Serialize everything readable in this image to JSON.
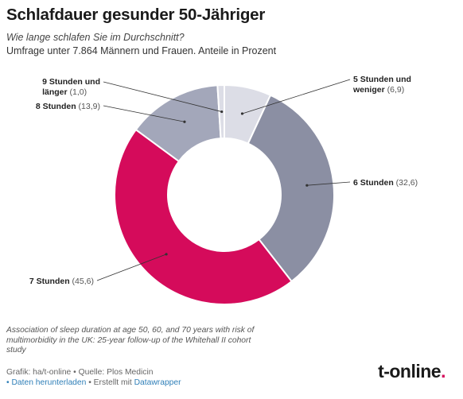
{
  "header": {
    "title": "Schlafdauer gesunder 50-Jähriger",
    "subtitle": "Wie lange schlafen Sie im Durchschnitt?",
    "description": "Umfrage unter 7.864 Männern und Frauen. Anteile in Prozent"
  },
  "chart_data": {
    "type": "pie",
    "donut": true,
    "title": "Schlafdauer gesunder 50-Jähriger",
    "categories": [
      "5 Stunden und weniger",
      "6 Stunden",
      "7 Stunden",
      "8 Stunden",
      "9 Stunden und länger"
    ],
    "values": [
      6.9,
      32.6,
      45.6,
      13.9,
      1.0
    ],
    "colors": [
      "#dcdde6",
      "#8b8fa3",
      "#d50b5b",
      "#a3a7ba",
      "#dcdde6"
    ],
    "labels": [
      {
        "lines": [
          "5 Stunden und",
          "weniger"
        ],
        "value_text": "(6,9)"
      },
      {
        "lines": [
          "6 Stunden"
        ],
        "value_text": "(32,6)"
      },
      {
        "lines": [
          "7 Stunden"
        ],
        "value_text": "(45,6)"
      },
      {
        "lines": [
          "8 Stunden"
        ],
        "value_text": "(13,9)"
      },
      {
        "lines": [
          "9 Stunden und",
          "länger"
        ],
        "value_text": "(1,0)"
      }
    ],
    "legend": "none"
  },
  "footer": {
    "note": "Association of sleep duration at age 50, 60, and 70 years with risk of multimorbidity in the UK: 25-year follow-up of the Whitehall II cohort study",
    "credit": "Grafik: ha/t-online • Quelle: Plos Medicin",
    "download_link": "• Daten herunterladen",
    "created_with": " • Erstellt mit ",
    "datawrapper_link": "Datawrapper",
    "logo_text": "t-online",
    "logo_dot": "."
  },
  "colors": {
    "accent": "#d50b5b",
    "link": "#2f7fb8"
  }
}
